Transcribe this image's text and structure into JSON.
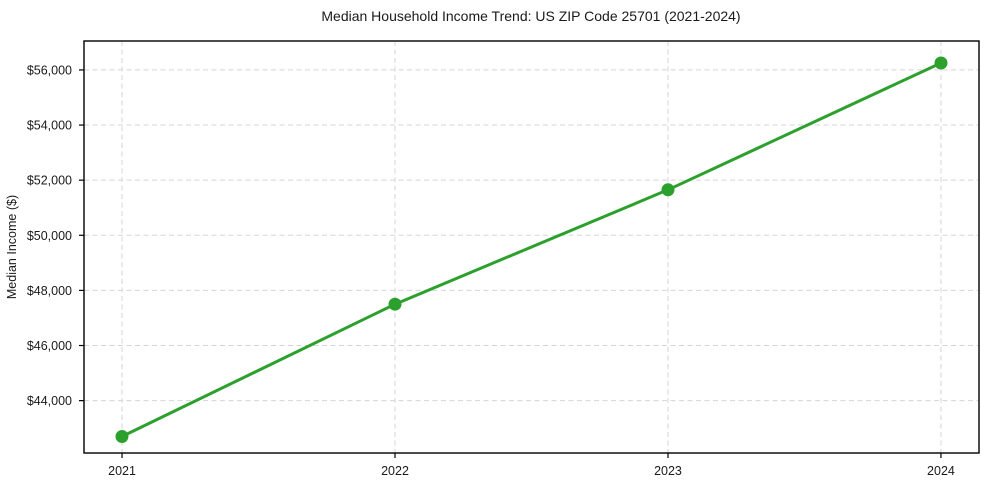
{
  "figure": {
    "background": "#ffffff"
  },
  "chart_data": {
    "type": "line",
    "title": "Median Household Income Trend: US ZIP Code 25701 (2021-2024)",
    "xlabel": "",
    "ylabel": "Median Income ($)",
    "categories": [
      "2021",
      "2022",
      "2023",
      "2024"
    ],
    "values": [
      42700,
      47500,
      51650,
      56250
    ],
    "xtick_labels": [
      "2021",
      "2022",
      "2023",
      "2024"
    ],
    "yticks": [
      44000,
      46000,
      48000,
      50000,
      52000,
      54000,
      56000
    ],
    "ytick_labels": [
      "$44,000",
      "$46,000",
      "$48,000",
      "$50,000",
      "$52,000",
      "$54,000",
      "$56,000"
    ],
    "ylim": [
      42100,
      57050
    ],
    "line_color": "#2ca02c",
    "line_width": 3,
    "marker": "circle",
    "marker_size": 13,
    "grid": "both",
    "grid_style": "dashed",
    "grid_color": "#d5d5d5",
    "legend_position": "none",
    "axes_color": "#000000"
  }
}
